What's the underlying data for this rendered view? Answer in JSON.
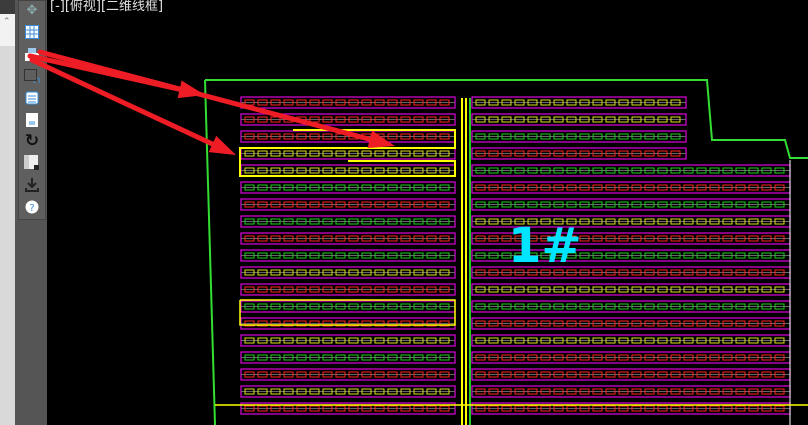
{
  "viewport": {
    "label": "[-][俯视][二维线框]"
  },
  "drawing": {
    "building_label": "1#"
  },
  "toolbar": {
    "items": [
      {
        "icon": "pan-icon"
      },
      {
        "icon": "grid-icon"
      },
      {
        "icon": "print-icon"
      },
      {
        "icon": "restore-view-icon"
      },
      {
        "icon": "layer-manager-icon"
      },
      {
        "icon": "document-icon"
      },
      {
        "icon": "refresh-icon"
      },
      {
        "icon": "layout-icon"
      },
      {
        "icon": "download-icon"
      },
      {
        "icon": "help-icon"
      }
    ]
  },
  "colors": {
    "boundary": "#33dd33",
    "arrow": "#ee1c24",
    "row_frame": "#dd00dd",
    "highlight": "#ffff00",
    "label": "#00e5ff"
  }
}
